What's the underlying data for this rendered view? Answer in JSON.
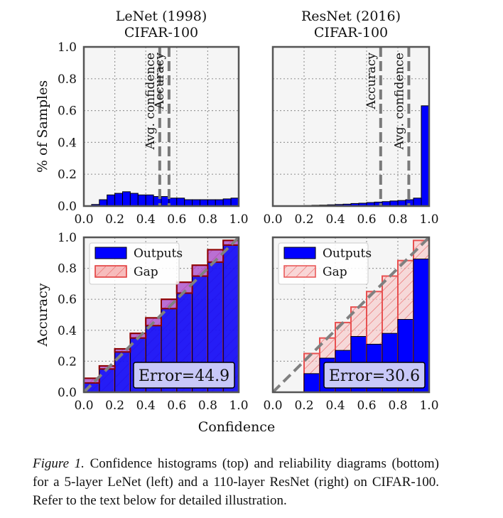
{
  "caption": {
    "label": "Figure 1.",
    "text": "Confidence histograms (top) and reliability diagrams (bottom) for a 5-layer LeNet (left) and a 110-layer ResNet (right) on CIFAR-100. Refer to the text below for detailed illustration."
  },
  "shared": {
    "x_label": "Confidence",
    "y_label_top": "% of Samples",
    "y_label_bottom": "Accuracy",
    "ticks": [
      "0.0",
      "0.2",
      "0.4",
      "0.6",
      "0.8",
      "1.0"
    ]
  },
  "chart_data": [
    {
      "type": "bar",
      "panel": "lenet-histogram",
      "title": "LeNet (1998)",
      "subtitle": "CIFAR-100",
      "ylabel": "% of Samples",
      "xlim": [
        0,
        1
      ],
      "ylim": [
        0,
        1
      ],
      "bin_width": 0.05,
      "bin_centers": [
        0.025,
        0.075,
        0.125,
        0.175,
        0.225,
        0.275,
        0.325,
        0.375,
        0.425,
        0.475,
        0.525,
        0.575,
        0.625,
        0.675,
        0.725,
        0.775,
        0.825,
        0.875,
        0.925,
        0.975
      ],
      "values": [
        0.0,
        0.01,
        0.04,
        0.07,
        0.08,
        0.09,
        0.08,
        0.07,
        0.07,
        0.06,
        0.06,
        0.05,
        0.05,
        0.04,
        0.04,
        0.04,
        0.04,
        0.04,
        0.045,
        0.05
      ],
      "lines": [
        {
          "label": "Avg. confidence",
          "x": 0.49
        },
        {
          "label": "Accuracy",
          "x": 0.55
        }
      ],
      "colors": {
        "bar": "#0000ff",
        "line": "#7a7a7a"
      }
    },
    {
      "type": "bar",
      "panel": "resnet-histogram",
      "title": "ResNet (2016)",
      "subtitle": "CIFAR-100",
      "xlim": [
        0,
        1
      ],
      "ylim": [
        0,
        1
      ],
      "bin_width": 0.05,
      "bin_centers": [
        0.025,
        0.075,
        0.125,
        0.175,
        0.225,
        0.275,
        0.325,
        0.375,
        0.425,
        0.475,
        0.525,
        0.575,
        0.625,
        0.675,
        0.725,
        0.775,
        0.825,
        0.875,
        0.925,
        0.975
      ],
      "values": [
        0.0,
        0.0,
        0.0,
        0.0,
        0.003,
        0.005,
        0.006,
        0.008,
        0.01,
        0.012,
        0.016,
        0.018,
        0.022,
        0.025,
        0.028,
        0.032,
        0.035,
        0.04,
        0.05,
        0.63
      ],
      "lines": [
        {
          "label": "Accuracy",
          "x": 0.69
        },
        {
          "label": "Avg. confidence",
          "x": 0.87
        }
      ],
      "colors": {
        "bar": "#0000ff",
        "line": "#7a7a7a"
      }
    },
    {
      "type": "bar",
      "panel": "lenet-reliability",
      "ylabel": "Accuracy",
      "xlabel": "Confidence",
      "xlim": [
        0,
        1
      ],
      "ylim": [
        0,
        1
      ],
      "bin_width": 0.1,
      "bin_centers": [
        0.05,
        0.15,
        0.25,
        0.35,
        0.45,
        0.55,
        0.65,
        0.75,
        0.85,
        0.95
      ],
      "series": [
        {
          "name": "Outputs",
          "values": [
            0.06,
            0.15,
            0.26,
            0.35,
            0.43,
            0.54,
            0.64,
            0.75,
            0.84,
            0.95
          ]
        },
        {
          "name": "Gap",
          "values": [
            0.09,
            0.17,
            0.28,
            0.38,
            0.48,
            0.6,
            0.71,
            0.82,
            0.92,
            0.98
          ]
        }
      ],
      "legend": [
        "Outputs",
        "Gap"
      ],
      "legend_position": "top-left",
      "annotation": "Error=44.9",
      "colors": {
        "outputs": "#0000ff",
        "gap_fill": "#f4a0a0",
        "gap_edge": "#e03030",
        "diag": "#808080"
      }
    },
    {
      "type": "bar",
      "panel": "resnet-reliability",
      "xlabel": "Confidence",
      "xlim": [
        0,
        1
      ],
      "ylim": [
        0,
        1
      ],
      "bin_width": 0.1,
      "bin_centers": [
        0.05,
        0.15,
        0.25,
        0.35,
        0.45,
        0.55,
        0.65,
        0.75,
        0.85,
        0.95
      ],
      "series": [
        {
          "name": "Outputs",
          "values": [
            0.0,
            0.0,
            0.12,
            0.22,
            0.27,
            0.36,
            0.31,
            0.38,
            0.47,
            0.86
          ]
        },
        {
          "name": "Gap",
          "values": [
            0.0,
            0.0,
            0.25,
            0.35,
            0.45,
            0.55,
            0.65,
            0.75,
            0.85,
            0.98
          ]
        }
      ],
      "legend": [
        "Outputs",
        "Gap"
      ],
      "legend_position": "top-left",
      "annotation": "Error=30.6",
      "colors": {
        "outputs": "#0000ff",
        "gap_fill": "#f7c4c4",
        "gap_edge": "#e85050",
        "diag": "#808080"
      }
    }
  ]
}
